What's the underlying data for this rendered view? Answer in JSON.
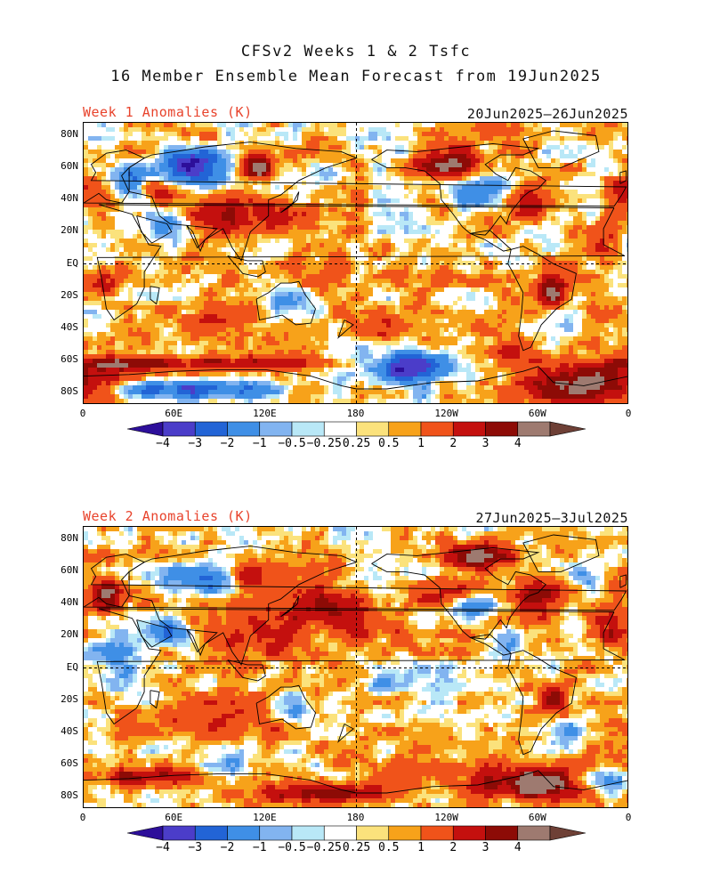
{
  "title_line1": "CFSv2 Weeks 1 & 2 Tsfc",
  "title_line2": "16 Member Ensemble Mean Forecast from 19Jun2025",
  "panels": [
    {
      "label": "Week 1 Anomalies (K)",
      "date_range": "20Jun2025—26Jun2025",
      "regime": "week1"
    },
    {
      "label": "Week 2 Anomalies (K)",
      "date_range": "27Jun2025—3Jul2025",
      "regime": "week2"
    }
  ],
  "lat_labels": [
    "80N",
    "60N",
    "40N",
    "20N",
    "EQ",
    "20S",
    "40S",
    "60S",
    "80S"
  ],
  "lat_values": [
    80,
    60,
    40,
    20,
    0,
    -20,
    -40,
    -60,
    -80
  ],
  "lon_labels": [
    "0",
    "60E",
    "120E",
    "180",
    "120W",
    "60W",
    "0"
  ],
  "lon_values": [
    0,
    60,
    120,
    180,
    240,
    300,
    360
  ],
  "colorbar": {
    "labels": [
      "−4",
      "−3",
      "−2",
      "−1",
      "−0.5",
      "−0.25",
      "0.25",
      "0.5",
      "1",
      "2",
      "3",
      "4"
    ],
    "colors": [
      "#2d0f9a",
      "#4b3dc9",
      "#2264d6",
      "#3f8fe6",
      "#82b4f0",
      "#b9e8f7",
      "#ffffff",
      "#fbe27c",
      "#f7a21a",
      "#f0531a",
      "#c4100e",
      "#8d0b06",
      "#9e7a70",
      "#6e4036"
    ]
  }
}
